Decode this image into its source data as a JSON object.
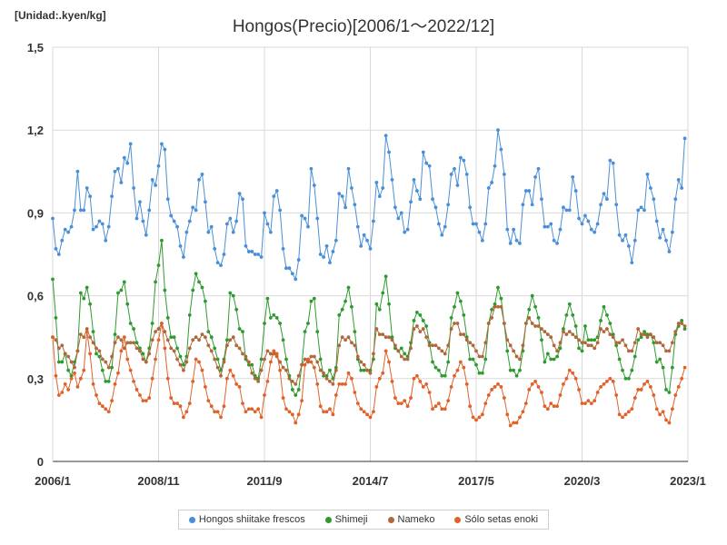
{
  "chart_data": {
    "type": "line",
    "title": "Hongos(Precio)[2006/1～2022/12]",
    "unit_label": "[Unidad:.kyen/kg]",
    "ylim": [
      0,
      1.5
    ],
    "y_ticks": [
      "0",
      "0,3",
      "0,6",
      "0,9",
      "1,2",
      "1,5"
    ],
    "x_ticks": [
      "2006/1",
      "2008/11",
      "2011/9",
      "2014/7",
      "2017/5",
      "2020/3",
      "2023/1"
    ],
    "x_start": "2006/1",
    "x_end": "2023/1",
    "grid": true,
    "legend_position": "bottom",
    "series": [
      {
        "name": "Hongos shiitake frescos",
        "color": "#4a8fd6",
        "values": [
          0.88,
          0.77,
          0.75,
          0.8,
          0.84,
          0.83,
          0.85,
          0.91,
          1.05,
          0.91,
          0.91,
          0.99,
          0.96,
          0.84,
          0.85,
          0.87,
          0.86,
          0.8,
          0.85,
          0.96,
          1.05,
          1.06,
          1.01,
          1.1,
          1.08,
          1.15,
          0.99,
          0.88,
          0.94,
          0.87,
          0.82,
          0.91,
          1.02,
          1.0,
          1.07,
          1.15,
          1.13,
          0.95,
          0.89,
          0.87,
          0.85,
          0.78,
          0.74,
          0.83,
          0.87,
          0.92,
          0.91,
          1.02,
          1.04,
          0.94,
          0.83,
          0.85,
          0.77,
          0.72,
          0.71,
          0.75,
          0.86,
          0.88,
          0.83,
          0.87,
          0.97,
          0.95,
          0.78,
          0.76,
          0.76,
          0.75,
          0.75,
          0.74,
          0.9,
          0.86,
          0.83,
          0.96,
          0.98,
          0.91,
          0.77,
          0.7,
          0.7,
          0.68,
          0.66,
          0.73,
          0.89,
          0.88,
          0.85,
          1.06,
          1.0,
          0.88,
          0.75,
          0.74,
          0.78,
          0.72,
          0.76,
          0.8,
          0.97,
          0.96,
          0.92,
          1.06,
          0.99,
          0.93,
          0.85,
          0.78,
          0.82,
          0.8,
          0.77,
          0.87,
          1.01,
          0.96,
          0.99,
          1.18,
          1.12,
          1.02,
          0.92,
          0.88,
          0.9,
          0.83,
          0.84,
          0.94,
          1.02,
          0.98,
          0.95,
          1.12,
          1.08,
          1.07,
          0.95,
          0.92,
          0.86,
          0.82,
          0.85,
          0.93,
          1.04,
          1.06,
          1.0,
          1.1,
          1.09,
          1.04,
          0.92,
          0.86,
          0.86,
          0.83,
          0.8,
          0.86,
          0.99,
          1.01,
          1.07,
          1.2,
          1.13,
          1.04,
          0.84,
          0.79,
          0.84,
          0.8,
          0.79,
          0.93,
          0.98,
          0.98,
          0.93,
          1.03,
          1.06,
          0.95,
          0.85,
          0.85,
          0.86,
          0.8,
          0.79,
          0.84,
          0.92,
          0.91,
          0.91,
          1.03,
          0.98,
          0.88,
          0.86,
          0.89,
          0.87,
          0.84,
          0.83,
          0.86,
          0.93,
          0.97,
          0.95,
          1.09,
          1.08,
          0.93,
          0.82,
          0.8,
          0.82,
          0.78,
          0.72,
          0.8,
          0.91,
          0.92,
          0.91,
          1.04,
          0.99,
          0.95,
          0.87,
          0.81,
          0.84,
          0.8,
          0.76,
          0.83,
          0.95,
          1.02,
          0.99,
          1.17
        ]
      },
      {
        "name": "Shimeji",
        "color": "#2f9a2f",
        "values": [
          0.66,
          0.52,
          0.36,
          0.36,
          0.39,
          0.33,
          0.31,
          0.36,
          0.4,
          0.61,
          0.59,
          0.63,
          0.57,
          0.47,
          0.39,
          0.38,
          0.33,
          0.29,
          0.29,
          0.34,
          0.46,
          0.61,
          0.62,
          0.65,
          0.57,
          0.5,
          0.48,
          0.43,
          0.41,
          0.39,
          0.36,
          0.41,
          0.5,
          0.65,
          0.71,
          0.8,
          0.62,
          0.52,
          0.45,
          0.45,
          0.41,
          0.38,
          0.35,
          0.38,
          0.53,
          0.62,
          0.68,
          0.65,
          0.63,
          0.58,
          0.47,
          0.45,
          0.41,
          0.37,
          0.33,
          0.37,
          0.44,
          0.61,
          0.6,
          0.55,
          0.48,
          0.47,
          0.37,
          0.35,
          0.35,
          0.31,
          0.3,
          0.37,
          0.5,
          0.59,
          0.52,
          0.53,
          0.52,
          0.5,
          0.44,
          0.37,
          0.31,
          0.26,
          0.24,
          0.26,
          0.35,
          0.47,
          0.5,
          0.58,
          0.59,
          0.47,
          0.37,
          0.31,
          0.31,
          0.33,
          0.3,
          0.34,
          0.53,
          0.55,
          0.58,
          0.63,
          0.56,
          0.47,
          0.37,
          0.33,
          0.33,
          0.33,
          0.33,
          0.37,
          0.57,
          0.55,
          0.61,
          0.67,
          0.57,
          0.45,
          0.41,
          0.4,
          0.41,
          0.39,
          0.38,
          0.43,
          0.51,
          0.54,
          0.53,
          0.51,
          0.49,
          0.43,
          0.36,
          0.34,
          0.33,
          0.31,
          0.31,
          0.36,
          0.52,
          0.56,
          0.61,
          0.58,
          0.53,
          0.45,
          0.37,
          0.37,
          0.35,
          0.32,
          0.32,
          0.37,
          0.5,
          0.55,
          0.57,
          0.63,
          0.59,
          0.5,
          0.4,
          0.33,
          0.33,
          0.31,
          0.33,
          0.4,
          0.5,
          0.55,
          0.6,
          0.56,
          0.52,
          0.44,
          0.36,
          0.39,
          0.37,
          0.37,
          0.38,
          0.41,
          0.48,
          0.53,
          0.57,
          0.53,
          0.49,
          0.41,
          0.4,
          0.49,
          0.44,
          0.44,
          0.44,
          0.45,
          0.51,
          0.56,
          0.53,
          0.5,
          0.46,
          0.42,
          0.37,
          0.33,
          0.3,
          0.3,
          0.33,
          0.38,
          0.44,
          0.45,
          0.47,
          0.46,
          0.46,
          0.43,
          0.36,
          0.37,
          0.34,
          0.26,
          0.25,
          0.34,
          0.46,
          0.49,
          0.51,
          0.48
        ]
      },
      {
        "name": "Nameko",
        "color": "#b0683a",
        "values": [
          0.45,
          0.44,
          0.41,
          0.42,
          0.39,
          0.38,
          0.36,
          0.34,
          0.4,
          0.46,
          0.45,
          0.48,
          0.45,
          0.43,
          0.41,
          0.4,
          0.37,
          0.36,
          0.34,
          0.38,
          0.43,
          0.45,
          0.44,
          0.41,
          0.43,
          0.43,
          0.43,
          0.41,
          0.4,
          0.37,
          0.36,
          0.39,
          0.44,
          0.47,
          0.48,
          0.5,
          0.47,
          0.44,
          0.41,
          0.4,
          0.37,
          0.35,
          0.33,
          0.36,
          0.41,
          0.44,
          0.45,
          0.44,
          0.46,
          0.45,
          0.42,
          0.4,
          0.37,
          0.34,
          0.31,
          0.36,
          0.42,
          0.44,
          0.45,
          0.42,
          0.41,
          0.39,
          0.38,
          0.36,
          0.32,
          0.3,
          0.29,
          0.33,
          0.37,
          0.4,
          0.39,
          0.39,
          0.38,
          0.36,
          0.34,
          0.33,
          0.3,
          0.29,
          0.28,
          0.31,
          0.35,
          0.37,
          0.36,
          0.38,
          0.38,
          0.36,
          0.33,
          0.32,
          0.3,
          0.29,
          0.28,
          0.33,
          0.42,
          0.45,
          0.44,
          0.45,
          0.43,
          0.42,
          0.38,
          0.36,
          0.35,
          0.33,
          0.32,
          0.39,
          0.48,
          0.46,
          0.46,
          0.45,
          0.45,
          0.44,
          0.42,
          0.4,
          0.38,
          0.37,
          0.37,
          0.41,
          0.48,
          0.49,
          0.47,
          0.48,
          0.45,
          0.42,
          0.42,
          0.42,
          0.41,
          0.4,
          0.39,
          0.42,
          0.48,
          0.5,
          0.5,
          0.46,
          0.46,
          0.44,
          0.43,
          0.42,
          0.4,
          0.38,
          0.38,
          0.43,
          0.5,
          0.52,
          0.56,
          0.56,
          0.56,
          0.5,
          0.44,
          0.42,
          0.4,
          0.38,
          0.37,
          0.42,
          0.5,
          0.52,
          0.5,
          0.49,
          0.49,
          0.48,
          0.47,
          0.46,
          0.45,
          0.42,
          0.4,
          0.43,
          0.47,
          0.46,
          0.47,
          0.46,
          0.45,
          0.44,
          0.43,
          0.43,
          0.42,
          0.42,
          0.41,
          0.43,
          0.48,
          0.47,
          0.48,
          0.46,
          0.45,
          0.43,
          0.43,
          0.44,
          0.42,
          0.4,
          0.4,
          0.43,
          0.48,
          0.46,
          0.46,
          0.45,
          0.46,
          0.45,
          0.43,
          0.43,
          0.42,
          0.4,
          0.4,
          0.43,
          0.47,
          0.5,
          0.5,
          0.49
        ]
      },
      {
        "name": "Sólo setas enoki",
        "color": "#e0622a",
        "values": [
          0.45,
          0.31,
          0.24,
          0.25,
          0.28,
          0.26,
          0.3,
          0.32,
          0.27,
          0.3,
          0.33,
          0.47,
          0.39,
          0.28,
          0.24,
          0.21,
          0.2,
          0.19,
          0.18,
          0.22,
          0.28,
          0.32,
          0.4,
          0.45,
          0.37,
          0.33,
          0.29,
          0.26,
          0.24,
          0.22,
          0.22,
          0.23,
          0.3,
          0.37,
          0.44,
          0.5,
          0.41,
          0.3,
          0.23,
          0.21,
          0.21,
          0.2,
          0.16,
          0.18,
          0.21,
          0.29,
          0.37,
          0.36,
          0.33,
          0.27,
          0.22,
          0.2,
          0.18,
          0.18,
          0.16,
          0.2,
          0.3,
          0.33,
          0.31,
          0.28,
          0.27,
          0.21,
          0.18,
          0.19,
          0.19,
          0.18,
          0.19,
          0.16,
          0.24,
          0.29,
          0.36,
          0.4,
          0.39,
          0.33,
          0.23,
          0.19,
          0.18,
          0.17,
          0.14,
          0.17,
          0.22,
          0.35,
          0.37,
          0.36,
          0.34,
          0.28,
          0.2,
          0.18,
          0.18,
          0.19,
          0.17,
          0.24,
          0.28,
          0.28,
          0.28,
          0.32,
          0.3,
          0.25,
          0.21,
          0.19,
          0.18,
          0.17,
          0.16,
          0.18,
          0.27,
          0.3,
          0.32,
          0.4,
          0.36,
          0.29,
          0.23,
          0.21,
          0.21,
          0.22,
          0.2,
          0.23,
          0.3,
          0.31,
          0.29,
          0.27,
          0.28,
          0.25,
          0.19,
          0.2,
          0.21,
          0.19,
          0.19,
          0.22,
          0.27,
          0.31,
          0.33,
          0.36,
          0.34,
          0.28,
          0.2,
          0.16,
          0.15,
          0.16,
          0.17,
          0.21,
          0.24,
          0.26,
          0.27,
          0.28,
          0.27,
          0.23,
          0.17,
          0.13,
          0.14,
          0.14,
          0.16,
          0.18,
          0.21,
          0.26,
          0.28,
          0.29,
          0.27,
          0.25,
          0.2,
          0.19,
          0.21,
          0.2,
          0.2,
          0.24,
          0.28,
          0.3,
          0.33,
          0.32,
          0.3,
          0.26,
          0.21,
          0.21,
          0.22,
          0.21,
          0.22,
          0.25,
          0.27,
          0.28,
          0.29,
          0.3,
          0.29,
          0.24,
          0.17,
          0.16,
          0.17,
          0.18,
          0.19,
          0.23,
          0.26,
          0.26,
          0.28,
          0.29,
          0.27,
          0.24,
          0.19,
          0.17,
          0.18,
          0.15,
          0.14,
          0.19,
          0.24,
          0.27,
          0.3,
          0.34
        ]
      }
    ]
  }
}
